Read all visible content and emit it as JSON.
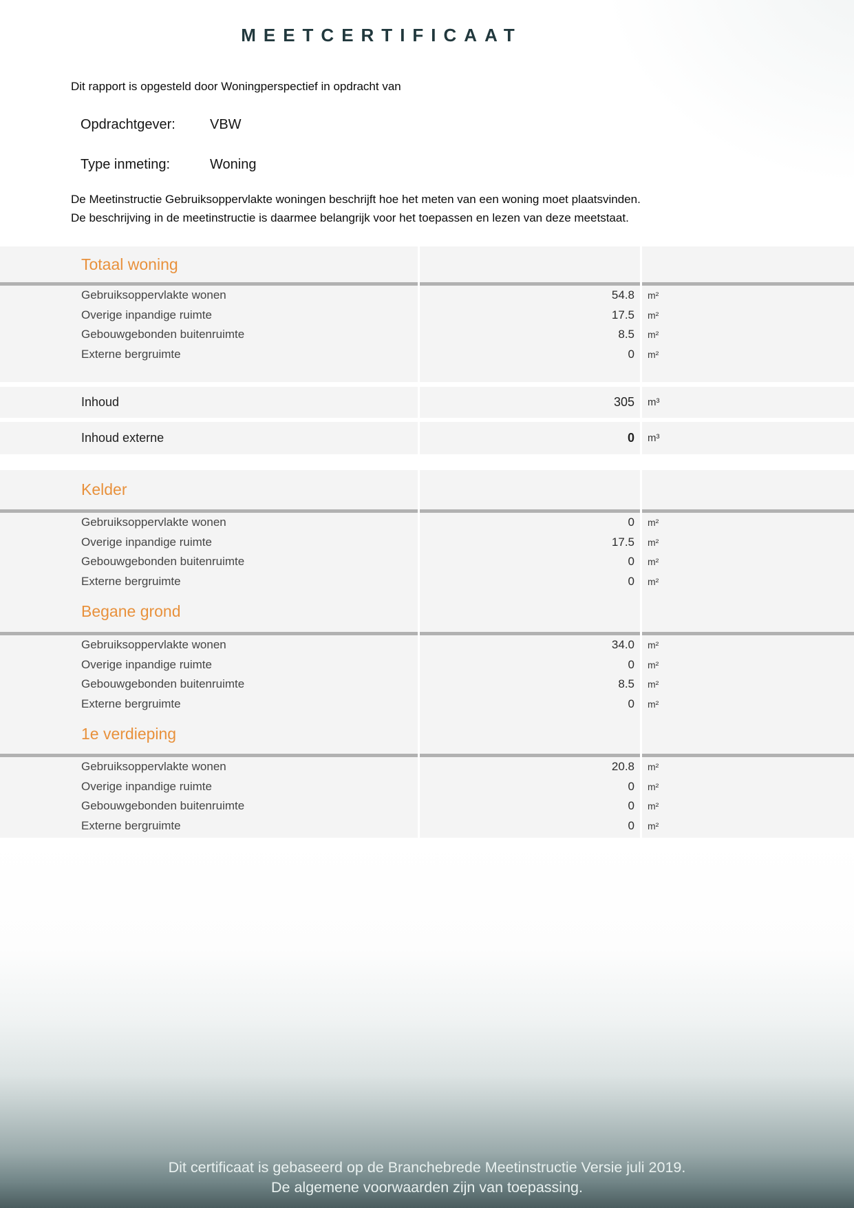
{
  "page": {
    "title": "MEETCERTIFICAAT",
    "intro": "Dit rapport is opgesteld door Woningperspectief in opdracht van",
    "client": {
      "label": "Opdrachtgever:",
      "value": "VBW"
    },
    "measurement_type": {
      "label": "Type inmeting:",
      "value": "Woning"
    },
    "description": [
      "De Meetinstructie Gebruiksoppervlakte woningen beschrijft hoe het meten van een woning moet plaatsvinden.",
      "De beschrijving in de meetinstructie is daarmee belangrijk voor het toepassen en lezen van deze meetstaat."
    ]
  },
  "table": {
    "sections": [
      {
        "name": "Totaal woning",
        "rows": [
          {
            "label": "Gebruiksoppervlakte wonen",
            "value": "54.8",
            "unit": "m²"
          },
          {
            "label": "Overige inpandige ruimte",
            "value": "17.5",
            "unit": "m²"
          },
          {
            "label": "Gebouwgebonden buitenruimte",
            "value": "8.5",
            "unit": "m²"
          },
          {
            "label": "Externe bergruimte",
            "value": "0",
            "unit": "m²"
          }
        ]
      },
      {
        "name": "Kelder",
        "rows": [
          {
            "label": "Gebruiksoppervlakte wonen",
            "value": "0",
            "unit": "m²"
          },
          {
            "label": "Overige inpandige ruimte",
            "value": "17.5",
            "unit": "m²"
          },
          {
            "label": "Gebouwgebonden buitenruimte",
            "value": "0",
            "unit": "m²"
          },
          {
            "label": "Externe bergruimte",
            "value": "0",
            "unit": "m²"
          }
        ]
      },
      {
        "name": "Begane grond",
        "rows": [
          {
            "label": "Gebruiksoppervlakte wonen",
            "value": "34.0",
            "unit": "m²"
          },
          {
            "label": "Overige inpandige ruimte",
            "value": "0",
            "unit": "m²"
          },
          {
            "label": "Gebouwgebonden buitenruimte",
            "value": "8.5",
            "unit": "m²"
          },
          {
            "label": "Externe bergruimte",
            "value": "0",
            "unit": "m²"
          }
        ]
      },
      {
        "name": "1e verdieping",
        "rows": [
          {
            "label": "Gebruiksoppervlakte wonen",
            "value": "20.8",
            "unit": "m²"
          },
          {
            "label": "Overige inpandige ruimte",
            "value": "0",
            "unit": "m²"
          },
          {
            "label": "Gebouwgebonden buitenruimte",
            "value": "0",
            "unit": "m²"
          },
          {
            "label": "Externe bergruimte",
            "value": "0",
            "unit": "m²"
          }
        ]
      }
    ],
    "volume_rows": [
      {
        "label": "Inhoud",
        "value": "305",
        "unit": "m³",
        "bold": false
      },
      {
        "label": "Inhoud externe",
        "value": "0",
        "unit": "m³",
        "bold": true
      }
    ]
  },
  "footer": {
    "lines": [
      "Dit certificaat is gebaseerd op de Branchebrede Meetinstructie Versie juli 2019.",
      "De algemene voorwaarden zijn van toepassing."
    ]
  },
  "colors": {
    "accent_orange": "#e8913c",
    "title_teal": "#21383d",
    "table_bg": "#f4f4f4",
    "section_rule_gray": "#b1b1b1",
    "footer_dark": "#4a5c5e"
  }
}
